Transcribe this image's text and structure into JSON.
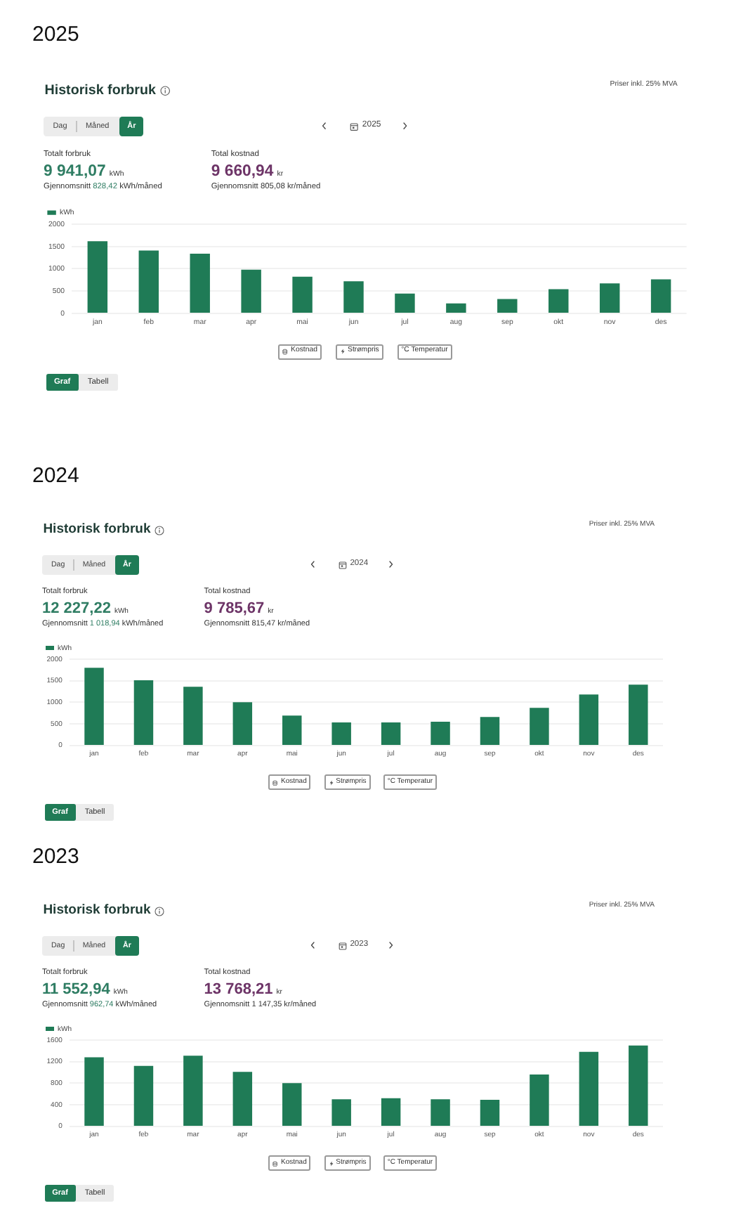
{
  "chart_data": [
    {
      "type": "bar",
      "title": "Historisk forbruk",
      "categories": [
        "jan",
        "feb",
        "mar",
        "apr",
        "mai",
        "jun",
        "jul",
        "aug",
        "sep",
        "okt",
        "nov",
        "des"
      ],
      "series": [
        {
          "name": "kWh",
          "color": "#1f7b56",
          "values": [
            1620,
            1410,
            1340,
            980,
            820,
            720,
            440,
            220,
            320,
            540,
            670,
            760
          ]
        }
      ],
      "ylim": [
        0,
        2000
      ],
      "yticks": [
        0,
        500,
        1000,
        1500,
        2000
      ],
      "grid": "y",
      "legend": "top left",
      "annotations": [
        "2025",
        "Priser inkl. 25% MVA",
        "Dag",
        "Måned",
        "År",
        "2025",
        "Totalt forbruk",
        "9 941,07",
        "kWh",
        "Gjennomsnitt",
        "828,42",
        "kWh/måned",
        "Total kostnad",
        "9 660,94",
        "kr",
        "Gjennomsnitt 805,08 kr/måned",
        "Kostnad",
        "Strømpris",
        "°C Temperatur",
        "Graf",
        "Tabell"
      ]
    },
    {
      "type": "bar",
      "title": "Historisk forbruk",
      "categories": [
        "jan",
        "feb",
        "mar",
        "apr",
        "mai",
        "jun",
        "jul",
        "aug",
        "sep",
        "okt",
        "nov",
        "des"
      ],
      "series": [
        {
          "name": "kWh",
          "color": "#1f7b56",
          "values": [
            1800,
            1510,
            1360,
            1000,
            690,
            530,
            530,
            550,
            660,
            870,
            1180,
            1410
          ]
        }
      ],
      "ylim": [
        0,
        2000
      ],
      "yticks": [
        0,
        500,
        1000,
        1500,
        2000
      ],
      "grid": "y",
      "legend": "top left",
      "annotations": [
        "2024",
        "Priser inkl. 25% MVA",
        "Dag",
        "Måned",
        "År",
        "2024",
        "Totalt forbruk",
        "12 227,22",
        "kWh",
        "Gjennomsnitt",
        "1 018,94",
        "kWh/måned",
        "Total kostnad",
        "9 785,67",
        "kr",
        "Gjennomsnitt 815,47 kr/måned",
        "Kostnad",
        "Strømpris",
        "°C Temperatur",
        "Graf",
        "Tabell"
      ]
    },
    {
      "type": "bar",
      "title": "Historisk forbruk",
      "categories": [
        "jan",
        "feb",
        "mar",
        "apr",
        "mai",
        "jun",
        "jul",
        "aug",
        "sep",
        "okt",
        "nov",
        "des"
      ],
      "series": [
        {
          "name": "kWh",
          "color": "#1f7b56",
          "values": [
            1280,
            1120,
            1310,
            1010,
            800,
            500,
            520,
            500,
            490,
            960,
            1380,
            1500
          ]
        }
      ],
      "ylim": [
        0,
        1600
      ],
      "yticks": [
        0,
        400,
        800,
        1200,
        1600
      ],
      "grid": "y",
      "legend": "top left",
      "annotations": [
        "2023",
        "Priser inkl. 25% MVA",
        "Dag",
        "Måned",
        "År",
        "2023",
        "Totalt forbruk",
        "11 552,94",
        "kWh",
        "Gjennomsnitt",
        "962,74",
        "kWh/måned",
        "Total kostnad",
        "13 768,21",
        "kr",
        "Gjennomsnitt 1 147,35 kr/måned",
        "Kostnad",
        "Strømpris",
        "°C Temperatur",
        "Graf",
        "Tabell"
      ]
    }
  ]
}
